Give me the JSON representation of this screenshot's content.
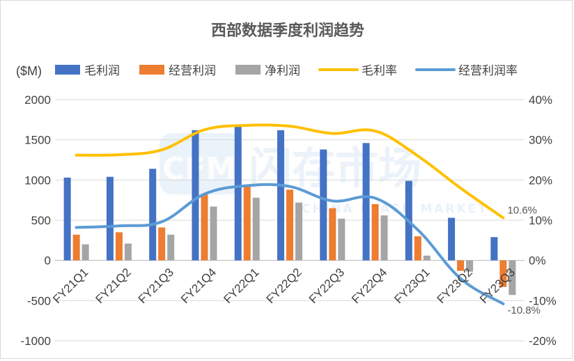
{
  "chart_data": {
    "type": "bar",
    "title": "西部数据季度利润趋势",
    "unit_label": "($M)",
    "categories": [
      "FY21Q1",
      "FY21Q2",
      "FY21Q3",
      "FY21Q4",
      "FY22Q1",
      "FY22Q2",
      "FY22Q3",
      "FY22Q4",
      "FY23Q1",
      "FY23Q2",
      "FY23Q3"
    ],
    "series": [
      {
        "name": "毛利润",
        "type": "bar",
        "axis": "left",
        "color": "#4472c4",
        "values": [
          1030,
          1040,
          1140,
          1620,
          1680,
          1620,
          1380,
          1460,
          990,
          530,
          290
        ]
      },
      {
        "name": "经营利润",
        "type": "bar",
        "axis": "left",
        "color": "#ed7d31",
        "values": [
          320,
          350,
          410,
          820,
          930,
          880,
          650,
          700,
          300,
          -130,
          -330
        ]
      },
      {
        "name": "净利润",
        "type": "bar",
        "axis": "left",
        "color": "#a5a5a5",
        "values": [
          200,
          210,
          320,
          670,
          780,
          720,
          520,
          560,
          60,
          -140,
          -430
        ]
      },
      {
        "name": "毛利率",
        "type": "line",
        "axis": "right",
        "color": "#ffc000",
        "values": [
          0.262,
          0.263,
          0.275,
          0.325,
          0.336,
          0.334,
          0.316,
          0.322,
          0.26,
          0.18,
          0.106
        ]
      },
      {
        "name": "经营利润率",
        "type": "line",
        "axis": "right",
        "color": "#5b9bd5",
        "values": [
          0.082,
          0.086,
          0.096,
          0.165,
          0.186,
          0.184,
          0.148,
          0.155,
          0.076,
          -0.045,
          -0.108
        ]
      }
    ],
    "ylim_left": [
      -1000,
      2000
    ],
    "yticks_left": [
      "2000",
      "1500",
      "1000",
      "500",
      "0",
      "-500",
      "-1000"
    ],
    "ylim_right": [
      -0.2,
      0.4
    ],
    "yticks_right": [
      "40%",
      "30%",
      "20%",
      "10%",
      "0%",
      "-10%",
      "-20%"
    ],
    "annotations": [
      {
        "series": "毛利率",
        "index": 10,
        "text": "10.6%"
      },
      {
        "series": "经营利润率",
        "index": 10,
        "text": "-10.8%"
      }
    ],
    "legend_position": "top",
    "grid": "horizontal",
    "watermark": {
      "main": "闪存市场",
      "sub": "CHINA FLASH MARKET",
      "logo": "CFM"
    }
  }
}
